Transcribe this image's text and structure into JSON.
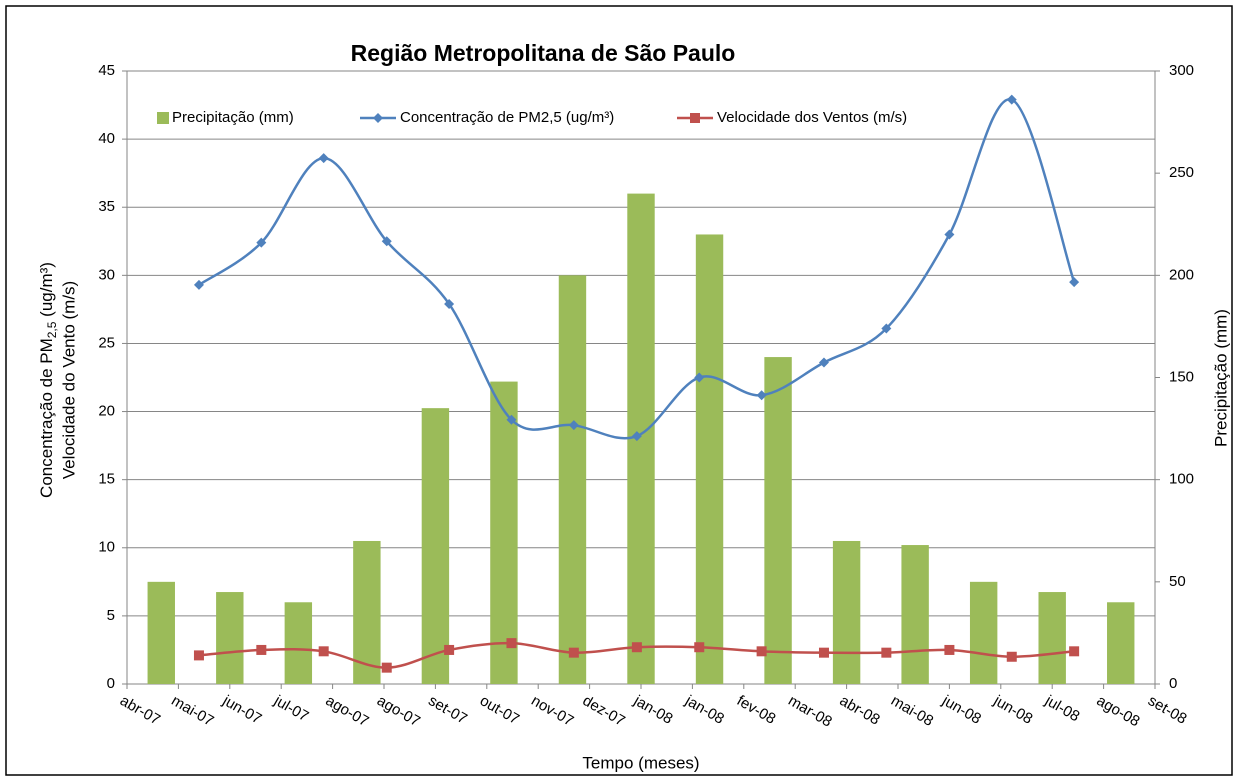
{
  "chart_data": {
    "type": "bar-line",
    "title": "Região Metropolitana de São Paulo",
    "x_label": "Tempo  (meses)",
    "y_label_line1": [
      "Concentração  de  PM",
      "2,5",
      " (ug/m³)"
    ],
    "y_label_line2": "Velocidade  do Vento  (m/s)",
    "y2_label": "Precipitação  (mm)",
    "xlim": [
      0,
      15
    ],
    "xticks": [
      {
        "value": 0,
        "label": "abr-07"
      },
      {
        "value": 0.75,
        "label": "mai-07"
      },
      {
        "value": 1.5,
        "label": "jun-07"
      },
      {
        "value": 2.25,
        "label": "jul-07"
      },
      {
        "value": 3,
        "label": "ago-07"
      },
      {
        "value": 3.75,
        "label": "ago-07"
      },
      {
        "value": 4.5,
        "label": "set-07"
      },
      {
        "value": 5.25,
        "label": "out-07"
      },
      {
        "value": 6,
        "label": "nov-07"
      },
      {
        "value": 6.75,
        "label": "dez-07"
      },
      {
        "value": 7.5,
        "label": "jan-08"
      },
      {
        "value": 8.25,
        "label": "jan-08"
      },
      {
        "value": 9,
        "label": "fev-08"
      },
      {
        "value": 9.75,
        "label": "mar-08"
      },
      {
        "value": 10.5,
        "label": "abr-08"
      },
      {
        "value": 11.25,
        "label": "mai-08"
      },
      {
        "value": 12,
        "label": "jun-08"
      },
      {
        "value": 12.75,
        "label": "jun-08"
      },
      {
        "value": 13.5,
        "label": "jul-08"
      },
      {
        "value": 14.25,
        "label": "ago-08"
      },
      {
        "value": 15,
        "label": "set-08"
      }
    ],
    "ylim": [
      0,
      45
    ],
    "yticks": [
      0,
      5,
      10,
      15,
      20,
      25,
      30,
      35,
      40,
      45
    ],
    "y2lim": [
      0,
      300
    ],
    "y2ticks": [
      0,
      50,
      100,
      150,
      200,
      250,
      300
    ],
    "grid": true,
    "legend": "top",
    "series": [
      {
        "name": "Precipitação (mm)",
        "kind": "bar",
        "axis": "y2",
        "color": "#9bbb59",
        "x": [
          0.5,
          1.5,
          2.5,
          3.5,
          4.5,
          5.5,
          6.5,
          7.5,
          8.5,
          9.5,
          10.5,
          11.5,
          12.5,
          13.5,
          14.5
        ],
        "values": [
          50,
          45,
          40,
          70,
          135,
          148,
          200,
          240,
          220,
          160,
          70,
          68,
          50,
          45,
          40
        ]
      },
      {
        "name": "Concentração de PM2,5 (ug/m³)",
        "kind": "line",
        "marker": "diamond",
        "color": "#4f81bd",
        "x": [
          1.05,
          1.96,
          2.87,
          3.79,
          4.7,
          5.61,
          6.52,
          7.44,
          8.35,
          9.26,
          10.17,
          11.08,
          12.0,
          12.91,
          13.82
        ],
        "values": [
          29.3,
          32.4,
          38.6,
          32.5,
          27.9,
          19.4,
          19,
          18.2,
          22.5,
          21.2,
          23.6,
          26.1,
          33,
          42.9,
          29.5
        ]
      },
      {
        "name": "Velocidade dos Ventos (m/s)",
        "kind": "line",
        "marker": "square",
        "color": "#c0504d",
        "x": [
          1.05,
          1.96,
          2.87,
          3.79,
          4.7,
          5.61,
          6.52,
          7.44,
          8.35,
          9.26,
          10.17,
          11.08,
          12.0,
          12.91,
          13.82
        ],
        "values": [
          2.1,
          2.5,
          2.4,
          1.2,
          2.5,
          3.0,
          2.3,
          2.7,
          2.7,
          2.4,
          2.3,
          2.3,
          2.5,
          2.0,
          2.4
        ]
      }
    ]
  }
}
